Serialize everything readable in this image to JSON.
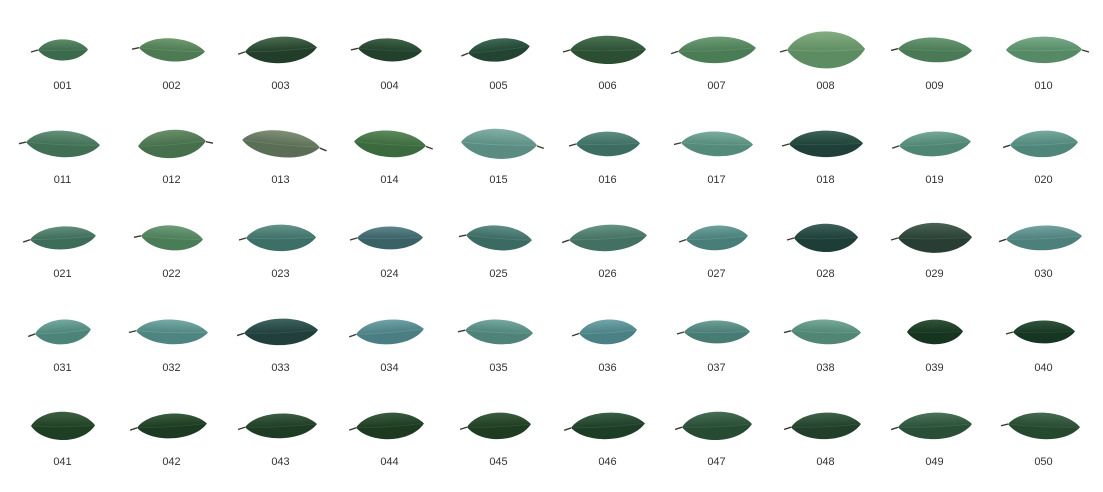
{
  "items": [
    {
      "label": "001",
      "color": "#3c6a4c",
      "hi": "#5e8c68",
      "w": 50,
      "h": 24,
      "rot": 0,
      "stem": "left"
    },
    {
      "label": "002",
      "color": "#4d7a52",
      "hi": "#6f9a70",
      "w": 66,
      "h": 26,
      "rot": 4,
      "stem": "left"
    },
    {
      "label": "003",
      "color": "#223d2a",
      "hi": "#4a6e50",
      "w": 72,
      "h": 30,
      "rot": -3,
      "stem": "left"
    },
    {
      "label": "004",
      "color": "#22402b",
      "hi": "#3f6447",
      "w": 64,
      "h": 26,
      "rot": 3,
      "stem": "left"
    },
    {
      "label": "005",
      "color": "#234433",
      "hi": "#3f6a55",
      "w": 62,
      "h": 26,
      "rot": -6,
      "stem": "left"
    },
    {
      "label": "006",
      "color": "#2c4f34",
      "hi": "#4a7252",
      "w": 76,
      "h": 32,
      "rot": 0,
      "stem": "left"
    },
    {
      "label": "007",
      "color": "#4a7c55",
      "hi": "#6e9c76",
      "w": 78,
      "h": 30,
      "rot": -2,
      "stem": "left"
    },
    {
      "label": "008",
      "color": "#5e8c62",
      "hi": "#85ad82",
      "w": 78,
      "h": 42,
      "rot": 0,
      "stem": "left"
    },
    {
      "label": "009",
      "color": "#4a7a55",
      "hi": "#6a9873",
      "w": 74,
      "h": 28,
      "rot": 2,
      "stem": "left"
    },
    {
      "label": "010",
      "color": "#568a66",
      "hi": "#7aab88",
      "w": 76,
      "h": 30,
      "rot": 0,
      "stem": "right"
    },
    {
      "label": "011",
      "color": "#416f54",
      "hi": "#64917a",
      "w": 74,
      "h": 30,
      "rot": 3,
      "stem": "left"
    },
    {
      "label": "012",
      "color": "#466f4c",
      "hi": "#6a8f6a",
      "w": 68,
      "h": 32,
      "rot": -4,
      "stem": "right"
    },
    {
      "label": "013",
      "color": "#5a6e55",
      "hi": "#7f9077",
      "w": 78,
      "h": 30,
      "rot": 6,
      "stem": "right"
    },
    {
      "label": "014",
      "color": "#3b6a3e",
      "hi": "#5d8a5c",
      "w": 72,
      "h": 30,
      "rot": 4,
      "stem": "right"
    },
    {
      "label": "015",
      "color": "#5a8c82",
      "hi": "#83b0a7",
      "w": 76,
      "h": 34,
      "rot": 3,
      "stem": "right"
    },
    {
      "label": "016",
      "color": "#3c6d60",
      "hi": "#5f8f82",
      "w": 64,
      "h": 28,
      "rot": 0,
      "stem": "left"
    },
    {
      "label": "017",
      "color": "#548a7a",
      "hi": "#7aad9e",
      "w": 72,
      "h": 28,
      "rot": 2,
      "stem": "left"
    },
    {
      "label": "018",
      "color": "#1f4038",
      "hi": "#3b6458",
      "w": 74,
      "h": 30,
      "rot": 0,
      "stem": "left"
    },
    {
      "label": "019",
      "color": "#4f8573",
      "hi": "#74a897",
      "w": 72,
      "h": 28,
      "rot": -3,
      "stem": "left"
    },
    {
      "label": "020",
      "color": "#50857a",
      "hi": "#76aa9d",
      "w": 68,
      "h": 30,
      "rot": -2,
      "stem": "left"
    },
    {
      "label": "021",
      "color": "#3e6c5a",
      "hi": "#618f7c",
      "w": 66,
      "h": 26,
      "rot": -3,
      "stem": "left"
    },
    {
      "label": "022",
      "color": "#4b7c58",
      "hi": "#6e9c78",
      "w": 62,
      "h": 28,
      "rot": 4,
      "stem": "left"
    },
    {
      "label": "023",
      "color": "#3e6f66",
      "hi": "#63948a",
      "w": 70,
      "h": 30,
      "rot": 0,
      "stem": "left"
    },
    {
      "label": "024",
      "color": "#3a6266",
      "hi": "#5d868a",
      "w": 66,
      "h": 26,
      "rot": 0,
      "stem": "left"
    },
    {
      "label": "025",
      "color": "#3b6a63",
      "hi": "#5e8e86",
      "w": 66,
      "h": 28,
      "rot": 5,
      "stem": "left"
    },
    {
      "label": "026",
      "color": "#437062",
      "hi": "#679584",
      "w": 78,
      "h": 30,
      "rot": -3,
      "stem": "left"
    },
    {
      "label": "027",
      "color": "#487d78",
      "hi": "#6ea29c",
      "w": 62,
      "h": 28,
      "rot": -3,
      "stem": "left"
    },
    {
      "label": "028",
      "color": "#1e3d37",
      "hi": "#3d625b",
      "w": 64,
      "h": 32,
      "rot": 0,
      "stem": "left"
    },
    {
      "label": "029",
      "color": "#283e34",
      "hi": "#4a6356",
      "w": 74,
      "h": 34,
      "rot": 0,
      "stem": "left"
    },
    {
      "label": "030",
      "color": "#4d7f7b",
      "hi": "#73a3a0",
      "w": 76,
      "h": 28,
      "rot": -2,
      "stem": "left"
    },
    {
      "label": "031",
      "color": "#4d8479",
      "hi": "#73a89e",
      "w": 56,
      "h": 28,
      "rot": -4,
      "stem": "left"
    },
    {
      "label": "032",
      "color": "#4f8580",
      "hi": "#76aaa6",
      "w": 72,
      "h": 28,
      "rot": 2,
      "stem": "left"
    },
    {
      "label": "033",
      "color": "#213f3c",
      "hi": "#3f6561",
      "w": 74,
      "h": 30,
      "rot": -2,
      "stem": "left"
    },
    {
      "label": "034",
      "color": "#4a7e82",
      "hi": "#70a3a7",
      "w": 68,
      "h": 28,
      "rot": -4,
      "stem": "left"
    },
    {
      "label": "035",
      "color": "#4f837a",
      "hi": "#75a79e",
      "w": 68,
      "h": 28,
      "rot": 3,
      "stem": "left"
    },
    {
      "label": "036",
      "color": "#4b8085",
      "hi": "#71a5aa",
      "w": 58,
      "h": 28,
      "rot": -3,
      "stem": "left"
    },
    {
      "label": "037",
      "color": "#487b73",
      "hi": "#6ea098",
      "w": 66,
      "h": 26,
      "rot": 0,
      "stem": "left"
    },
    {
      "label": "038",
      "color": "#508673",
      "hi": "#77aa98",
      "w": 70,
      "h": 28,
      "rot": 2,
      "stem": "left"
    },
    {
      "label": "039",
      "color": "#16341f",
      "hi": "#32543a",
      "w": 56,
      "h": 28,
      "rot": 0,
      "stem": "none"
    },
    {
      "label": "040",
      "color": "#173622",
      "hi": "#33563e",
      "w": 62,
      "h": 26,
      "rot": 0,
      "stem": "left"
    },
    {
      "label": "041",
      "color": "#1f3f24",
      "hi": "#3d6042",
      "w": 64,
      "h": 32,
      "rot": 0,
      "stem": "none"
    },
    {
      "label": "042",
      "color": "#1c3a22",
      "hi": "#395c3f",
      "w": 70,
      "h": 28,
      "rot": -3,
      "stem": "left"
    },
    {
      "label": "043",
      "color": "#1e3c24",
      "hi": "#3b5e42",
      "w": 72,
      "h": 28,
      "rot": -2,
      "stem": "left"
    },
    {
      "label": "044",
      "color": "#1d3a21",
      "hi": "#3a5c3e",
      "w": 68,
      "h": 30,
      "rot": -3,
      "stem": "left"
    },
    {
      "label": "045",
      "color": "#1e3c22",
      "hi": "#3c5e40",
      "w": 64,
      "h": 30,
      "rot": -2,
      "stem": "left"
    },
    {
      "label": "046",
      "color": "#1d3d26",
      "hi": "#3b6046",
      "w": 74,
      "h": 30,
      "rot": -3,
      "stem": "left"
    },
    {
      "label": "047",
      "color": "#274a33",
      "hi": "#476e54",
      "w": 70,
      "h": 32,
      "rot": -2,
      "stem": "left"
    },
    {
      "label": "048",
      "color": "#213f2a",
      "hi": "#40634a",
      "w": 70,
      "h": 30,
      "rot": -2,
      "stem": "left"
    },
    {
      "label": "049",
      "color": "#2a4f38",
      "hi": "#4b745a",
      "w": 74,
      "h": 30,
      "rot": -2,
      "stem": "left"
    },
    {
      "label": "050",
      "color": "#26482f",
      "hi": "#466c50",
      "w": 72,
      "h": 30,
      "rot": 3,
      "stem": "left"
    }
  ]
}
